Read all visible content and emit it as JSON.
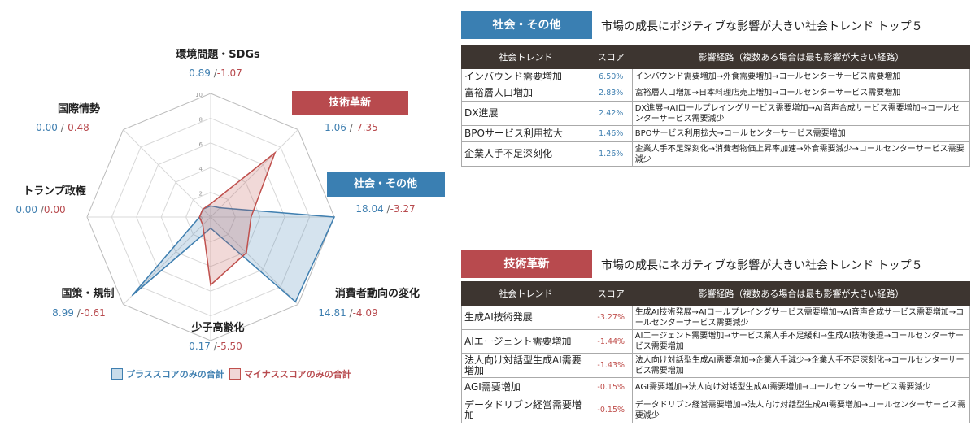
{
  "radar": {
    "axes": [
      {
        "name": "環境問題・SDGs",
        "pos": "0.89",
        "neg": "-1.07"
      },
      {
        "name": "技術革新",
        "pos": "1.06",
        "neg": "-7.35",
        "highlight": "red"
      },
      {
        "name": "社会・その他",
        "pos": "18.04",
        "neg": "-3.27",
        "highlight": "blue"
      },
      {
        "name": "消費者動向の変化",
        "pos": "14.81",
        "neg": "-4.09"
      },
      {
        "name": "少子高齢化",
        "pos": "0.17",
        "neg": "-5.50"
      },
      {
        "name": "国策・規制",
        "pos": "8.99",
        "neg": "-0.61"
      },
      {
        "name": "トランプ政権",
        "pos": "0.00",
        "neg": "0.00"
      },
      {
        "name": "国際情勢",
        "pos": "0.00",
        "neg": "-0.48"
      }
    ],
    "scale_labels": [
      "10",
      "8",
      "6",
      "4",
      "2",
      "0"
    ],
    "legend": {
      "pos": "プラススコアのみの合計",
      "neg": "マイナススコアのみの合計"
    },
    "colors": {
      "pos": "#3f7fb0",
      "neg": "#c0504d",
      "red_hl": "#b84a4e",
      "blue_hl": "#3a7fb2"
    }
  },
  "chart_data": {
    "type": "radar",
    "categories": [
      "環境問題・SDGs",
      "技術革新",
      "社会・その他",
      "消費者動向の変化",
      "少子高齢化",
      "国策・規制",
      "トランプ政権",
      "国際情勢"
    ],
    "scale": [
      0,
      10
    ],
    "series": [
      {
        "name": "プラススコアのみの合計",
        "values": [
          0.89,
          1.06,
          18.04,
          14.81,
          0.17,
          8.99,
          0.0,
          0.0
        ],
        "display_values": [
          0.89,
          1.06,
          10,
          9.7,
          0.17,
          8.99,
          0,
          0
        ]
      },
      {
        "name": "マイナススコアのみの合計",
        "values": [
          1.07,
          7.35,
          3.27,
          4.09,
          5.5,
          0.61,
          0.0,
          0.48
        ],
        "display_values": [
          1.07,
          7.35,
          3.27,
          4.09,
          5.5,
          0.61,
          0,
          0.48
        ]
      }
    ]
  },
  "positive": {
    "badge": "社会・その他",
    "title": "市場の成長にポジティブな影響が大きい社会トレンド トップ５",
    "headers": [
      "社会トレンド",
      "スコア",
      "影響経路（複数ある場合は最も影響が大きい経路）"
    ],
    "rows": [
      {
        "trend": "インバウンド需要増加",
        "score": "6.50%",
        "path": "インバウンド需要増加→外食需要増加→コールセンターサービス需要増加"
      },
      {
        "trend": "富裕層人口増加",
        "score": "2.83%",
        "path": "富裕層人口増加→日本料理店売上増加→コールセンターサービス需要増加"
      },
      {
        "trend": "DX進展",
        "score": "2.42%",
        "path": "DX進展→AIロールプレイングサービス需要増加→AI音声合成サービス需要増加→コールセンターサービス需要減少"
      },
      {
        "trend": "BPOサービス利用拡大",
        "score": "1.46%",
        "path": "BPOサービス利用拡大→コールセンターサービス需要増加"
      },
      {
        "trend": "企業人手不足深刻化",
        "score": "1.26%",
        "path": "企業人手不足深刻化→消費者物価上昇率加速→外食需要減少→コールセンターサービス需要減少"
      }
    ]
  },
  "negative": {
    "badge": "技術革新",
    "title": "市場の成長にネガティブな影響が大きい社会トレンド トップ５",
    "headers": [
      "社会トレンド",
      "スコア",
      "影響経路（複数ある場合は最も影響が大きい経路）"
    ],
    "rows": [
      {
        "trend": "生成AI技術発展",
        "score": "-3.27%",
        "path": "生成AI技術発展→AIロールプレイングサービス需要増加→AI音声合成サービス需要増加→コールセンターサービス需要減少"
      },
      {
        "trend": "AIエージェント需要増加",
        "score": "-1.44%",
        "path": "AIエージェント需要増加→サービス業人手不足緩和→生成AI技術後退→コールセンターサービス需要増加"
      },
      {
        "trend": "法人向け対話型生成AI需要増加",
        "score": "-1.43%",
        "path": "法人向け対話型生成AI需要増加→企業人手減少→企業人手不足深刻化→コールセンターサービス需要増加"
      },
      {
        "trend": "AGI需要増加",
        "score": "-0.15%",
        "path": "AGI需要増加→法人向け対話型生成AI需要増加→コールセンターサービス需要減少"
      },
      {
        "trend": "データドリブン経営需要増加",
        "score": "-0.15%",
        "path": "データドリブン経営需要増加→法人向け対話型生成AI需要増加→コールセンターサービス需要減少"
      }
    ]
  }
}
